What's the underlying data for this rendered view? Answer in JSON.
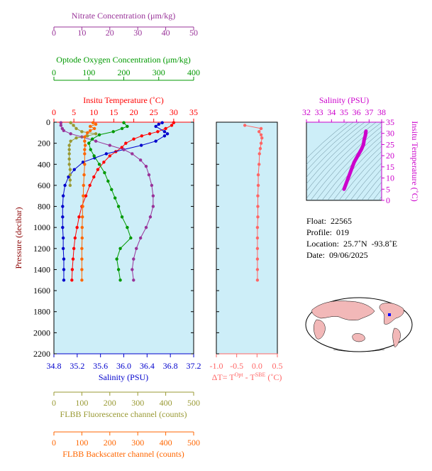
{
  "chart_data": {
    "type": "line",
    "title": "",
    "ylabel": "Pressure (decibar)",
    "ylim": [
      2200,
      0
    ],
    "yticks": [
      0,
      200,
      400,
      600,
      800,
      1000,
      1200,
      1400,
      1600,
      1800,
      2000,
      2200
    ],
    "axes": {
      "temperature": {
        "label": "Insitu Temperature (˚C)",
        "range": [
          0,
          35
        ],
        "ticks": [
          0,
          5,
          10,
          15,
          20,
          25,
          30,
          35
        ],
        "color": "#ff0000"
      },
      "salinity": {
        "label": "Salinity (PSU)",
        "range": [
          34.8,
          37.2
        ],
        "ticks": [
          "34.8",
          "35.2",
          "35.6",
          "36.0",
          "36.4",
          "36.8",
          "37.2"
        ],
        "color": "#0000cc"
      },
      "nitrate": {
        "label": "Nitrate Concentration (μm/kg)",
        "range": [
          0,
          50
        ],
        "ticks": [
          0,
          10,
          20,
          30,
          40,
          50
        ],
        "color": "#993399"
      },
      "oxygen": {
        "label": "Optode Oxygen Concentration (μm/kg)",
        "range": [
          0,
          400
        ],
        "ticks": [
          0,
          100,
          200,
          300,
          400
        ],
        "color": "#009900"
      },
      "fluorescence": {
        "label": "FLBB Fluorescence channel (counts)",
        "range": [
          0,
          500
        ],
        "ticks": [
          0,
          100,
          200,
          300,
          400,
          500
        ],
        "color": "#999933"
      },
      "backscatter": {
        "label": "FLBB Backscatter channel (counts)",
        "range": [
          0,
          500
        ],
        "ticks": [
          0,
          100,
          200,
          300,
          400,
          500
        ],
        "color": "#ff6600"
      },
      "dt": {
        "label_main": "ΔT= T",
        "label_sup1": "Opt",
        "label_mid": " - T",
        "label_sup2": "SBE",
        "label_end": " (˚C)",
        "range": [
          -1.0,
          0.5
        ],
        "ticks": [
          "-1.0",
          "-0.5",
          "0.0",
          "0.5"
        ],
        "color": "#ff6666"
      }
    },
    "series": [
      {
        "key": "temperature",
        "axis": "temperature",
        "color": "#ff0000",
        "points": [
          [
            30,
            5
          ],
          [
            29.5,
            30
          ],
          [
            28,
            60
          ],
          [
            26,
            90
          ],
          [
            24,
            110
          ],
          [
            22,
            130
          ],
          [
            20,
            160
          ],
          [
            18,
            200
          ],
          [
            17,
            240
          ],
          [
            15.5,
            280
          ],
          [
            14,
            320
          ],
          [
            12.5,
            380
          ],
          [
            11,
            450
          ],
          [
            10,
            520
          ],
          [
            9,
            600
          ],
          [
            8,
            700
          ],
          [
            7,
            800
          ],
          [
            6.3,
            900
          ],
          [
            5.8,
            1000
          ],
          [
            5.3,
            1100
          ],
          [
            5,
            1200
          ],
          [
            4.8,
            1300
          ],
          [
            4.6,
            1400
          ],
          [
            4.5,
            1500
          ]
        ]
      },
      {
        "key": "salinity",
        "axis": "salinity",
        "color": "#0000cc",
        "points": [
          [
            36.66,
            5
          ],
          [
            36.6,
            20
          ],
          [
            36.55,
            40
          ],
          [
            36.7,
            90
          ],
          [
            36.75,
            110
          ],
          [
            36.7,
            130
          ],
          [
            36.55,
            180
          ],
          [
            36.3,
            220
          ],
          [
            36.0,
            260
          ],
          [
            35.7,
            300
          ],
          [
            35.5,
            340
          ],
          [
            35.3,
            380
          ],
          [
            35.15,
            450
          ],
          [
            35.05,
            520
          ],
          [
            34.99,
            600
          ],
          [
            34.96,
            700
          ],
          [
            34.95,
            800
          ],
          [
            34.95,
            900
          ],
          [
            34.95,
            1000
          ],
          [
            34.96,
            1100
          ],
          [
            34.96,
            1200
          ],
          [
            34.97,
            1300
          ],
          [
            34.97,
            1400
          ],
          [
            34.97,
            1500
          ]
        ]
      },
      {
        "key": "nitrate",
        "axis": "nitrate",
        "color": "#993399",
        "points": [
          [
            2.5,
            5
          ],
          [
            2.5,
            30
          ],
          [
            3,
            60
          ],
          [
            3.5,
            80
          ],
          [
            6,
            110
          ],
          [
            10,
            140
          ],
          [
            15,
            180
          ],
          [
            20,
            220
          ],
          [
            25,
            260
          ],
          [
            28,
            300
          ],
          [
            31,
            360
          ],
          [
            33,
            420
          ],
          [
            34,
            500
          ],
          [
            35,
            600
          ],
          [
            35.5,
            700
          ],
          [
            35.5,
            800
          ],
          [
            34.5,
            900
          ],
          [
            33,
            1000
          ],
          [
            31,
            1100
          ],
          [
            29.5,
            1200
          ],
          [
            28.5,
            1300
          ],
          [
            28,
            1400
          ],
          [
            28.5,
            1500
          ]
        ]
      },
      {
        "key": "oxygen",
        "axis": "oxygen",
        "color": "#009900",
        "points": [
          [
            200,
            5
          ],
          [
            210,
            40
          ],
          [
            195,
            60
          ],
          [
            170,
            90
          ],
          [
            130,
            120
          ],
          [
            110,
            160
          ],
          [
            100,
            200
          ],
          [
            105,
            260
          ],
          [
            115,
            320
          ],
          [
            130,
            400
          ],
          [
            145,
            480
          ],
          [
            155,
            560
          ],
          [
            165,
            640
          ],
          [
            175,
            720
          ],
          [
            185,
            800
          ],
          [
            195,
            900
          ],
          [
            210,
            1000
          ],
          [
            220,
            1100
          ],
          [
            190,
            1200
          ],
          [
            180,
            1300
          ],
          [
            185,
            1400
          ],
          [
            190,
            1500
          ]
        ]
      },
      {
        "key": "fluorescence",
        "axis": "fluorescence",
        "color": "#999933",
        "points": [
          [
            60,
            5
          ],
          [
            70,
            30
          ],
          [
            80,
            60
          ],
          [
            100,
            90
          ],
          [
            150,
            110
          ],
          [
            120,
            130
          ],
          [
            80,
            150
          ],
          [
            60,
            180
          ],
          [
            55,
            220
          ],
          [
            55,
            260
          ],
          [
            55,
            300
          ],
          [
            55,
            350
          ],
          [
            55,
            400
          ],
          [
            58,
            450
          ],
          [
            58,
            500
          ],
          [
            58,
            550
          ],
          [
            58,
            600
          ]
        ]
      },
      {
        "key": "backscatter",
        "axis": "backscatter",
        "color": "#ff6600",
        "points": [
          [
            140,
            5
          ],
          [
            150,
            20
          ],
          [
            130,
            40
          ],
          [
            145,
            60
          ],
          [
            130,
            80
          ],
          [
            120,
            100
          ],
          [
            110,
            140
          ],
          [
            110,
            180
          ],
          [
            112,
            220
          ],
          [
            110,
            260
          ],
          [
            110,
            300
          ],
          [
            110,
            400
          ],
          [
            108,
            500
          ],
          [
            106,
            600
          ],
          [
            105,
            700
          ],
          [
            103,
            800
          ],
          [
            102,
            900
          ],
          [
            101,
            1000
          ],
          [
            101,
            1100
          ],
          [
            100,
            1200
          ],
          [
            100,
            1300
          ],
          [
            100,
            1400
          ],
          [
            100,
            1500
          ]
        ]
      },
      {
        "key": "dt",
        "axis": "dt",
        "color": "#ff6666",
        "points": [
          [
            -0.3,
            30
          ],
          [
            0.1,
            60
          ],
          [
            0.05,
            90
          ],
          [
            0.1,
            120
          ],
          [
            0.12,
            150
          ],
          [
            0.1,
            200
          ],
          [
            0.08,
            250
          ],
          [
            0.06,
            300
          ],
          [
            0.05,
            400
          ],
          [
            0.03,
            500
          ],
          [
            0.03,
            600
          ],
          [
            0.02,
            700
          ],
          [
            0.02,
            800
          ],
          [
            0.02,
            900
          ],
          [
            0.01,
            1000
          ],
          [
            0.01,
            1100
          ],
          [
            0.01,
            1200
          ],
          [
            0.01,
            1300
          ],
          [
            0.01,
            1400
          ],
          [
            0.01,
            1500
          ]
        ]
      }
    ],
    "ts_diagram": {
      "title": "Salinity (PSU)",
      "xlabel_color": "#cc00cc",
      "ylabel": "Insitu Temperature (˚C)",
      "xrange": [
        32,
        38
      ],
      "xticks": [
        32,
        33,
        34,
        35,
        36,
        37,
        38
      ],
      "yrange": [
        0,
        35
      ],
      "yticks": [
        0,
        5,
        10,
        15,
        20,
        25,
        30,
        35
      ],
      "points": [
        [
          35.0,
          5
        ],
        [
          35.2,
          8
        ],
        [
          35.4,
          11
        ],
        [
          35.6,
          14
        ],
        [
          35.8,
          17
        ],
        [
          36.0,
          19
        ],
        [
          36.2,
          21
        ],
        [
          36.4,
          23
        ],
        [
          36.55,
          25
        ],
        [
          36.6,
          27
        ],
        [
          36.7,
          29
        ],
        [
          36.75,
          31
        ]
      ]
    }
  },
  "info": {
    "float": "Float:  22565",
    "profile": "Profile:  019",
    "location": "Location:  25.7˚N  -93.8˚E",
    "date": "Date:  09/06/2025"
  }
}
